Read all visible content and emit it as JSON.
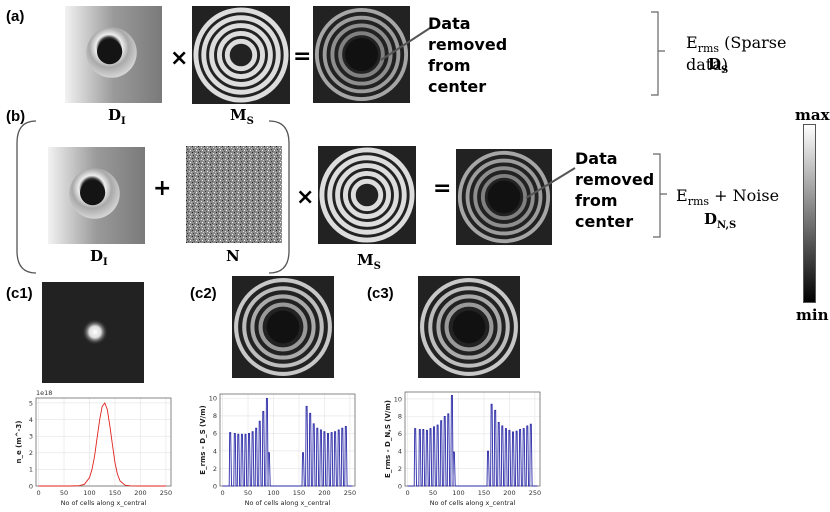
{
  "panels": {
    "a": "(a)",
    "b": "(b)",
    "c1": "(c1)",
    "c2": "(c2)",
    "c3": "(c3)"
  },
  "operators": {
    "times": "×",
    "plus": "+",
    "equals": "="
  },
  "annotation": {
    "line1": "Data",
    "line2": "removed",
    "line3": "from",
    "line4": "center"
  },
  "labels": {
    "di": "D",
    "di_sub": "I",
    "ms": "M",
    "ms_sub": "S",
    "n": "N",
    "ds": "D",
    "ds_sub": "S",
    "dns": "D",
    "dns_sub": "N,S"
  },
  "equations": {
    "a_main": "E",
    "a_sub": "rms",
    "a_rest": "(Sparse data)",
    "b_main": "E",
    "b_sub": "rms",
    "b_rest": "+ Noise"
  },
  "colorbar": {
    "max": "max",
    "min": "min"
  },
  "chart_data": [
    {
      "type": "line",
      "id": "c1",
      "title": "",
      "offset_label": "1e18",
      "ylabel": "n_e (m^-3)",
      "xlabel": "No of cells along x_central",
      "xlim": [
        -5,
        260
      ],
      "ylim": [
        0,
        5.3
      ],
      "xticks": [
        0,
        50,
        100,
        150,
        200,
        250
      ],
      "yticks": [
        0,
        1,
        2,
        3,
        4,
        5
      ],
      "line_color": "#e0201b",
      "series": [
        {
          "name": "n_e",
          "x": [
            0,
            60,
            80,
            90,
            100,
            105,
            110,
            115,
            120,
            125,
            130,
            135,
            140,
            145,
            150,
            155,
            160,
            170,
            180,
            200,
            250
          ],
          "values": [
            0,
            0,
            0.02,
            0.1,
            0.5,
            1.0,
            1.8,
            2.9,
            4.0,
            4.8,
            5.0,
            4.6,
            3.6,
            2.5,
            1.4,
            0.7,
            0.3,
            0.05,
            0.01,
            0,
            0
          ]
        }
      ]
    },
    {
      "type": "line",
      "id": "c2",
      "ylabel": "E_rms - D_S (V/m)",
      "xlabel": "No of cells along x_central",
      "xlim": [
        -5,
        260
      ],
      "ylim": [
        0,
        10.5
      ],
      "xticks": [
        0,
        50,
        100,
        150,
        200,
        250
      ],
      "yticks": [
        0,
        2,
        4,
        6,
        8,
        10
      ],
      "line_color": "#2a2aa8",
      "series": [
        {
          "name": "E_rms",
          "x": [
            15,
            24,
            31,
            38,
            45,
            52,
            59,
            66,
            73,
            80,
            87,
            91,
            158,
            165,
            172,
            179,
            186,
            193,
            200,
            207,
            214,
            221,
            228,
            235,
            242
          ],
          "values": [
            6.1,
            6.0,
            5.9,
            5.9,
            5.9,
            6.0,
            6.2,
            6.6,
            7.4,
            8.5,
            10.0,
            3.8,
            3.8,
            9.1,
            8.3,
            7.1,
            6.6,
            6.4,
            6.2,
            6.0,
            6.1,
            6.2,
            6.4,
            6.6,
            6.8
          ]
        }
      ]
    },
    {
      "type": "line",
      "id": "c3",
      "ylabel": "E_rms - D_N,S (V/m)",
      "xlabel": "No of cells along x_central",
      "xlim": [
        -5,
        260
      ],
      "ylim": [
        0,
        10.8
      ],
      "xticks": [
        0,
        50,
        100,
        150,
        200,
        250
      ],
      "yticks": [
        0,
        2,
        4,
        6,
        8,
        10
      ],
      "line_color": "#2a2aa8",
      "series": [
        {
          "name": "E_rms",
          "x": [
            15,
            24,
            31,
            38,
            45,
            52,
            59,
            66,
            73,
            80,
            87,
            91,
            158,
            165,
            172,
            179,
            186,
            193,
            200,
            207,
            214,
            221,
            228,
            235,
            242
          ],
          "values": [
            6.6,
            6.5,
            6.5,
            6.4,
            6.6,
            6.8,
            7.0,
            7.5,
            8.0,
            8.3,
            10.4,
            3.9,
            4.0,
            9.4,
            8.7,
            7.3,
            6.9,
            6.6,
            6.4,
            6.2,
            6.3,
            6.5,
            6.6,
            6.9,
            7.1
          ]
        }
      ]
    }
  ]
}
